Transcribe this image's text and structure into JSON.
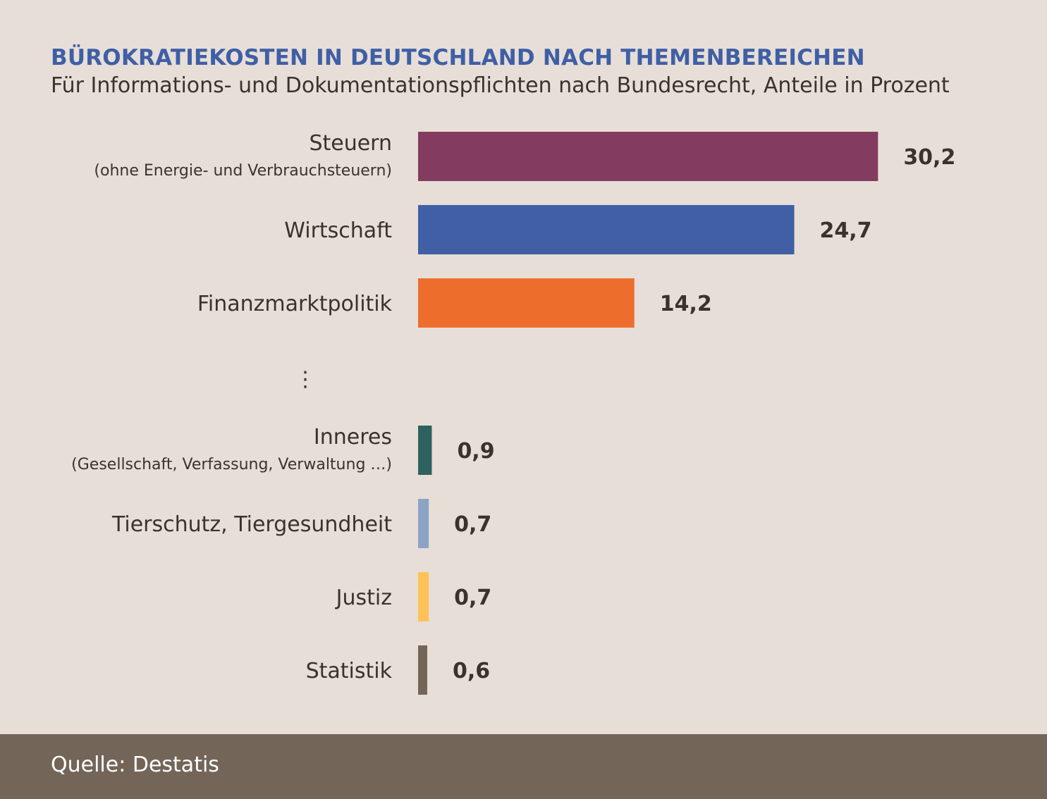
{
  "chart_data": {
    "type": "bar",
    "orientation": "horizontal",
    "title": "BÜROKRATIEKOSTEN IN DEUTSCHLAND NACH THEMENBEREICHEN",
    "subtitle": "Für Informations- und Dokumentationspflichten nach Bundesrecht, Anteile in Prozent",
    "categories": [
      {
        "name": "Steuern",
        "note": "(ohne Energie- und Verbrauchsteuern)",
        "value": 30.2,
        "value_label": "30,2",
        "color": "#833b5f"
      },
      {
        "name": "Wirtschaft",
        "note": "",
        "value": 24.7,
        "value_label": "24,7",
        "color": "#405fa5"
      },
      {
        "name": "Finanzmarktpolitik",
        "note": "",
        "value": 14.2,
        "value_label": "14,2",
        "color": "#ed6e2c"
      },
      {
        "name": "Inneres",
        "note": "(Gesellschaft, Verfassung, Verwaltung …)",
        "value": 0.9,
        "value_label": "0,9",
        "color": "#2e6260"
      },
      {
        "name": "Tierschutz, Tiergesundheit",
        "note": "",
        "value": 0.7,
        "value_label": "0,7",
        "color": "#8ba4c6"
      },
      {
        "name": "Justiz",
        "note": "",
        "value": 0.7,
        "value_label": "0,7",
        "color": "#fdc257"
      },
      {
        "name": "Statistik",
        "note": "",
        "value": 0.6,
        "value_label": "0,6",
        "color": "#736558"
      }
    ],
    "gap_marker_after": 2,
    "gap_marker_symbol": "⋮"
  },
  "source": "Quelle: Destatis"
}
